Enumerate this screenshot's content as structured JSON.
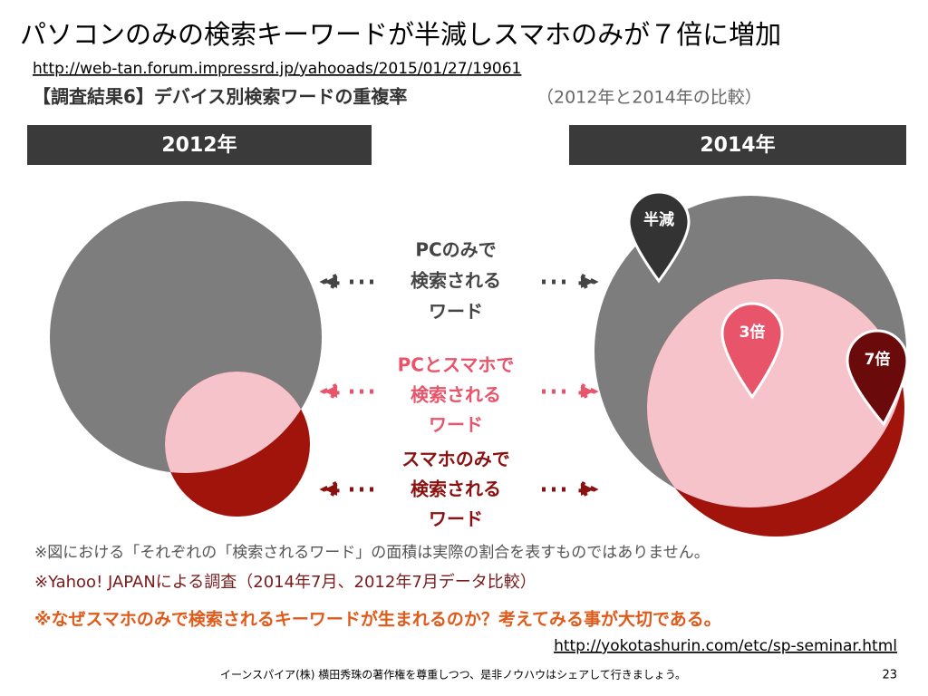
{
  "title": "パソコンのみの検索キーワードが半減しスマホのみが７倍に増加",
  "source_url": "http://web-tan.forum.impressrd.jp/yahooads/2015/01/27/19061",
  "figure": {
    "heading": "【調査結果6】デバイス別検索ワードの重複率",
    "heading_note": "（2012年と2014年の比較）",
    "panels": [
      "2012年",
      "2014年"
    ],
    "legend": [
      {
        "lines": [
          "PCのみで",
          "検索される",
          "ワード"
        ]
      },
      {
        "lines": [
          "PCとスマホで",
          "検索される",
          "ワード"
        ]
      },
      {
        "lines": [
          "スマホのみで",
          "検索される",
          "ワード"
        ]
      }
    ],
    "pins": [
      "半減",
      "3倍",
      "7倍"
    ],
    "notes": [
      "※図における「それぞれの「検索されるワード」の面積は実際の割合を表すものではありません。",
      "※Yahoo! JAPANによる調査（2014年7月、2012年7月データ比較）"
    ]
  },
  "footer_note": "※なぜスマホのみで検索されるキーワードが生まれるのか？考えてみる事が大切である。",
  "footer_url": "http://yokotashurin.com/etc/sp-seminar.html",
  "copyright": "イーンスパイア(株) 横田秀珠の著作権を尊重しつつ、是非ノウハウはシェアして行きましょう。",
  "page_number": "23"
}
